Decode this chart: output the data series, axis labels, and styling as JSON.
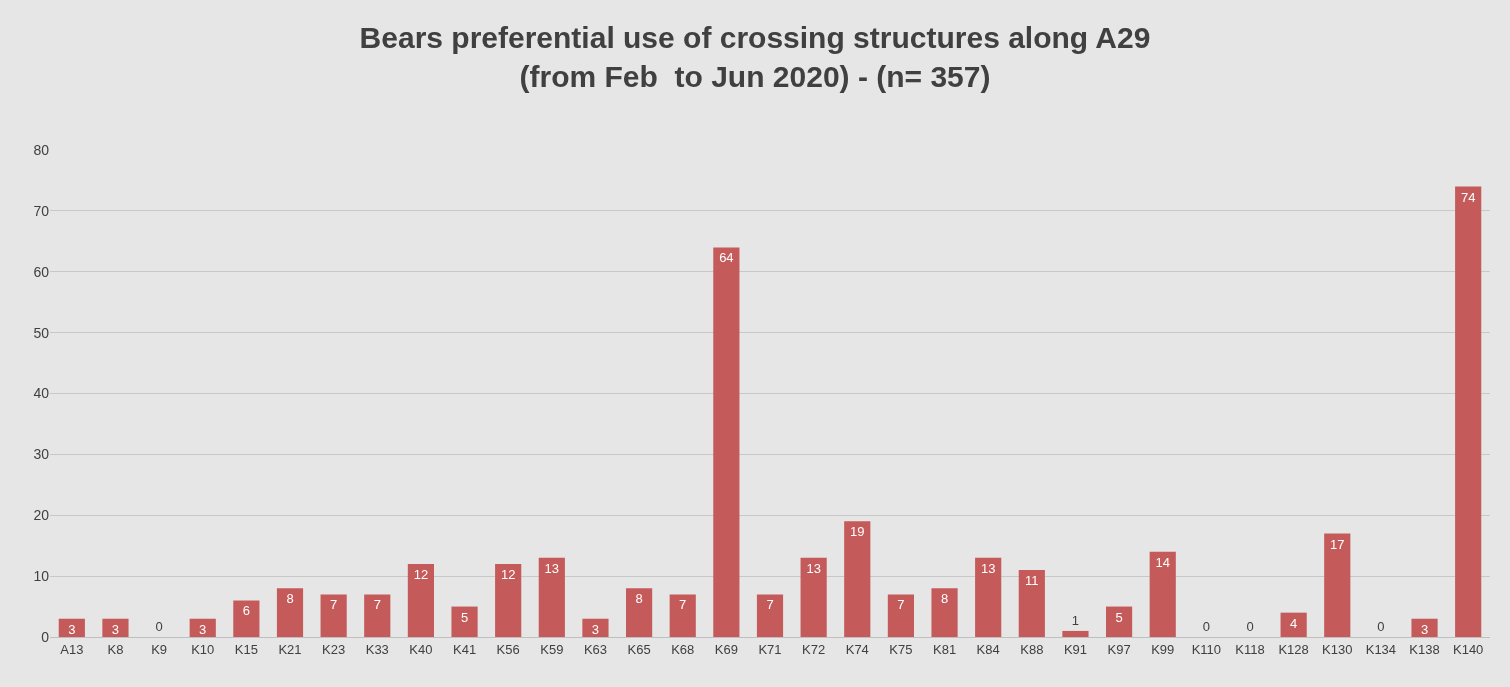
{
  "chart_data": {
    "type": "bar",
    "title": "Bears preferential use of crossing structures along A29\n(from Feb  to Jun 2020) - (n= 357)",
    "categories": [
      "A13",
      "K8",
      "K9",
      "K10",
      "K15",
      "K21",
      "K23",
      "K33",
      "K40",
      "K41",
      "K56",
      "K59",
      "K63",
      "K65",
      "K68",
      "K69",
      "K71",
      "K72",
      "K74",
      "K75",
      "K81",
      "K84",
      "K88",
      "K91",
      "K97",
      "K99",
      "K110",
      "K118",
      "K128",
      "K130",
      "K134",
      "K138",
      "K140"
    ],
    "values": [
      3,
      3,
      0,
      3,
      6,
      8,
      7,
      7,
      12,
      5,
      12,
      13,
      3,
      8,
      7,
      64,
      7,
      13,
      19,
      7,
      8,
      13,
      11,
      1,
      5,
      14,
      0,
      0,
      4,
      17,
      0,
      3,
      74
    ],
    "color": "#c55a5a",
    "ylim": [
      0,
      80
    ],
    "yticks": [
      0,
      10,
      20,
      30,
      40,
      50,
      60,
      70,
      80
    ],
    "grid": "y",
    "data_labels": true,
    "legend": false
  }
}
